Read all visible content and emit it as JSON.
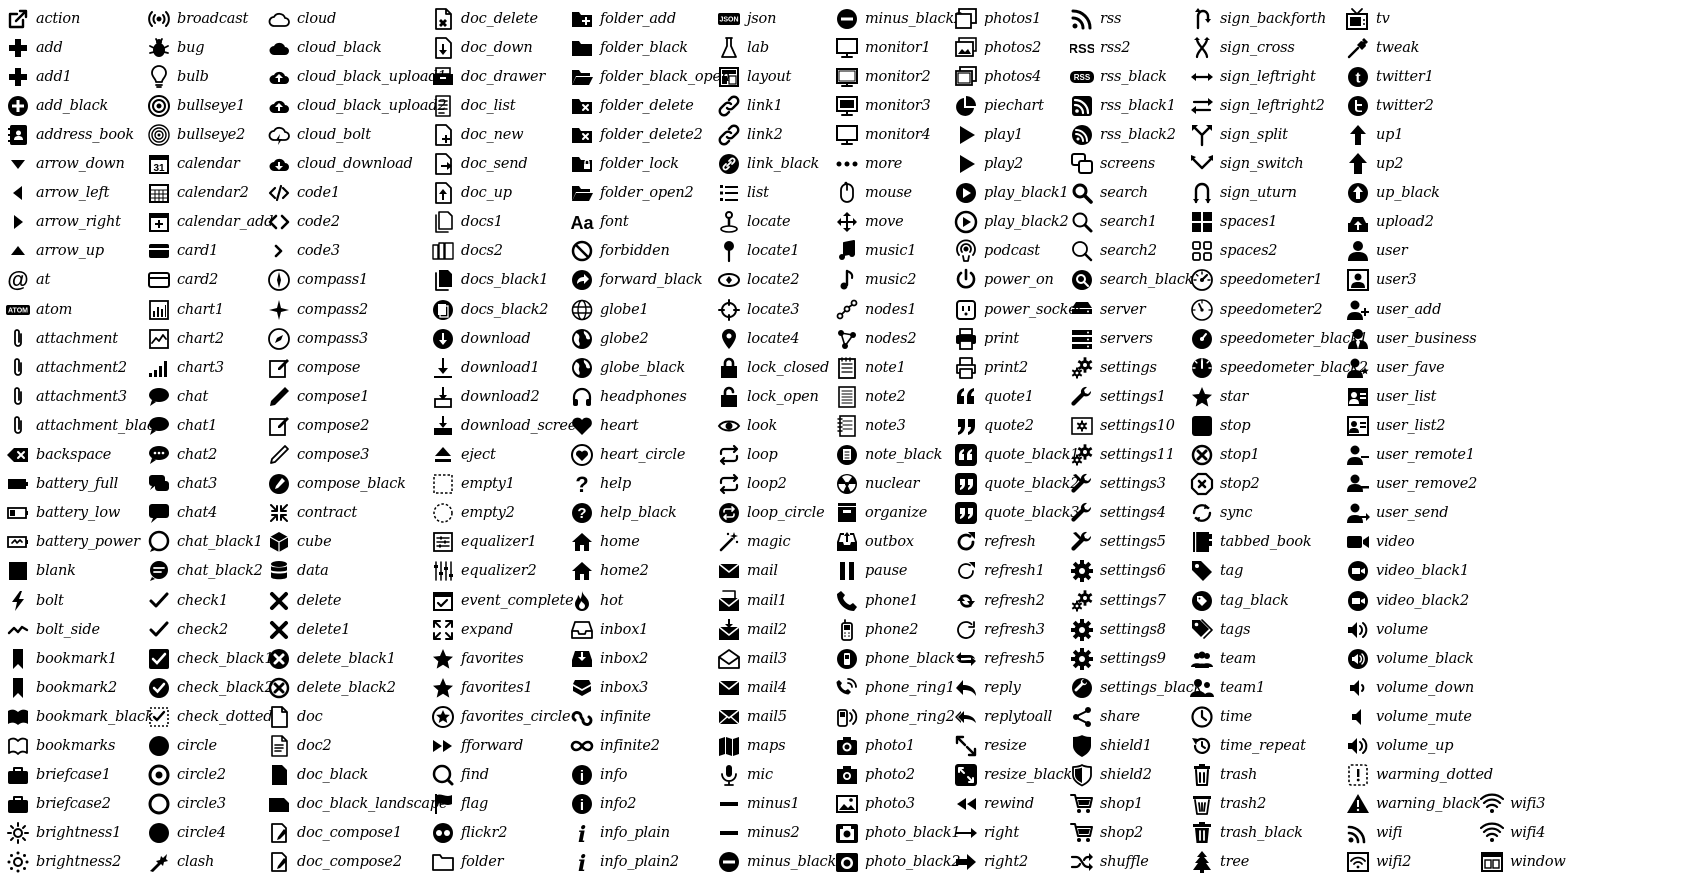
{
  "columns": [
    [
      "action",
      "add",
      "add1",
      "add_black",
      "address_book",
      "arrow_down",
      "arrow_left",
      "arrow_right",
      "arrow_up",
      "at",
      "atom",
      "attachment",
      "attachment2",
      "attachment3",
      "attachment_black",
      "backspace",
      "battery_full",
      "battery_low",
      "battery_power",
      "blank",
      "bolt",
      "bolt_side",
      "bookmark1",
      "bookmark2",
      "bookmark_black",
      "bookmarks",
      "briefcase1",
      "briefcase2",
      "brightness1",
      "brightness2"
    ],
    [
      "broadcast",
      "bug",
      "bulb",
      "bullseye1",
      "bullseye2",
      "calendar",
      "calendar2",
      "calendar_add",
      "card1",
      "card2",
      "chart1",
      "chart2",
      "chart3",
      "chat",
      "chat1",
      "chat2",
      "chat3",
      "chat4",
      "chat_black1",
      "chat_black2",
      "check1",
      "check2",
      "check_black1",
      "check_black2",
      "check_dotted",
      "circle",
      "circle2",
      "circle3",
      "circle4",
      "clash"
    ],
    [
      "cloud",
      "cloud_black",
      "cloud_black_upload1",
      "cloud_black_upload2",
      "cloud_bolt",
      "cloud_download",
      "code1",
      "code2",
      "code3",
      "compass1",
      "compass2",
      "compass3",
      "compose",
      "compose1",
      "compose2",
      "compose3",
      "compose_black",
      "contract",
      "cube",
      "data",
      "delete",
      "delete1",
      "delete_black1",
      "delete_black2",
      "doc",
      "doc2",
      "doc_black",
      "doc_black_landscape",
      "doc_compose1",
      "doc_compose2"
    ],
    [
      "doc_delete",
      "doc_down",
      "doc_drawer",
      "doc_list",
      "doc_new",
      "doc_send",
      "doc_up",
      "docs1",
      "docs2",
      "docs_black1",
      "docs_black2",
      "download",
      "download1",
      "download2",
      "download_screen",
      "eject",
      "empty1",
      "empty2",
      "equalizer1",
      "equalizer2",
      "event_complete",
      "expand",
      "favorites",
      "favorites1",
      "favorites_circle",
      "fforward",
      "find",
      "flag",
      "flickr2",
      "folder"
    ],
    [
      "folder_add",
      "folder_black",
      "folder_black_open",
      "folder_delete",
      "folder_delete2",
      "folder_lock",
      "folder_open2",
      "font",
      "forbidden",
      "forward_black",
      "globe1",
      "globe2",
      "globe_black",
      "headphones",
      "heart",
      "heart_circle",
      "help",
      "help_black",
      "home",
      "home2",
      "hot",
      "inbox1",
      "inbox2",
      "inbox3",
      "infinite",
      "infinite2",
      "info",
      "info2",
      "info_plain",
      "info_plain2"
    ],
    [
      "json",
      "lab",
      "layout",
      "link1",
      "link2",
      "link_black",
      "list",
      "locate",
      "locate1",
      "locate2",
      "locate3",
      "locate4",
      "lock_closed",
      "lock_open",
      "look",
      "loop",
      "loop2",
      "loop_circle",
      "magic",
      "mail",
      "mail1",
      "mail2",
      "mail3",
      "mail4",
      "mail5",
      "maps",
      "mic",
      "minus1",
      "minus2",
      "minus_black1"
    ],
    [
      "minus_black2",
      "monitor1",
      "monitor2",
      "monitor3",
      "monitor4",
      "more",
      "mouse",
      "move",
      "music1",
      "music2",
      "nodes1",
      "nodes2",
      "note1",
      "note2",
      "note3",
      "note_black",
      "nuclear",
      "organize",
      "outbox",
      "pause",
      "phone1",
      "phone2",
      "phone_black",
      "phone_ring1",
      "phone_ring2",
      "photo1",
      "photo2",
      "photo3",
      "photo_black1",
      "photo_black2"
    ],
    [
      "photos1",
      "photos2",
      "photos4",
      "piechart",
      "play1",
      "play2",
      "play_black1",
      "play_black2",
      "podcast",
      "power_on",
      "power_socket",
      "print",
      "print2",
      "quote1",
      "quote2",
      "quote_black1",
      "quote_black2",
      "quote_black3",
      "refresh",
      "refresh1",
      "refresh2",
      "refresh3",
      "refresh5",
      "reply",
      "replytoall",
      "resize",
      "resize_black",
      "rewind",
      "right",
      "right2"
    ],
    [
      "rss",
      "rss2",
      "rss_black",
      "rss_black1",
      "rss_black2",
      "screens",
      "search",
      "search1",
      "search2",
      "search_black",
      "server",
      "servers",
      "settings",
      "settings1",
      "settings10",
      "settings11",
      "settings3",
      "settings4",
      "settings5",
      "settings6",
      "settings7",
      "settings8",
      "settings9",
      "settings_black",
      "share",
      "shield1",
      "shield2",
      "shop1",
      "shop2",
      "shuffle"
    ],
    [
      "sign_backforth",
      "sign_cross",
      "sign_leftright",
      "sign_leftright2",
      "sign_split",
      "sign_switch",
      "sign_uturn",
      "spaces1",
      "spaces2",
      "speedometer1",
      "speedometer2",
      "speedometer_black1",
      "speedometer_black2",
      "star",
      "stop",
      "stop1",
      "stop2",
      "sync",
      "tabbed_book",
      "tag",
      "tag_black",
      "tags",
      "team",
      "team1",
      "time",
      "time_repeat",
      "trash",
      "trash2",
      "trash_black",
      "tree"
    ],
    [
      "tv",
      "tweak",
      "twitter1",
      "twitter2",
      "up1",
      "up2",
      "up_black",
      "upload2",
      "user",
      "user3",
      "user_add",
      "user_business",
      "user_fave",
      "user_list",
      "user_list2",
      "user_remote1",
      "user_remove2",
      "user_send",
      "video",
      "video_black1",
      "video_black2",
      "volume",
      "volume_black",
      "volume_down",
      "volume_mute",
      "volume_up",
      "warming_dotted",
      "warning_black",
      "wifi",
      "wifi2"
    ],
    [
      "wifi3",
      "wifi4",
      "window"
    ]
  ],
  "text_glyphs": {
    "json": "JSON",
    "atom": "ATOM",
    "rss2": "RSS",
    "rss_black": "RSS",
    "font": "Aa"
  }
}
